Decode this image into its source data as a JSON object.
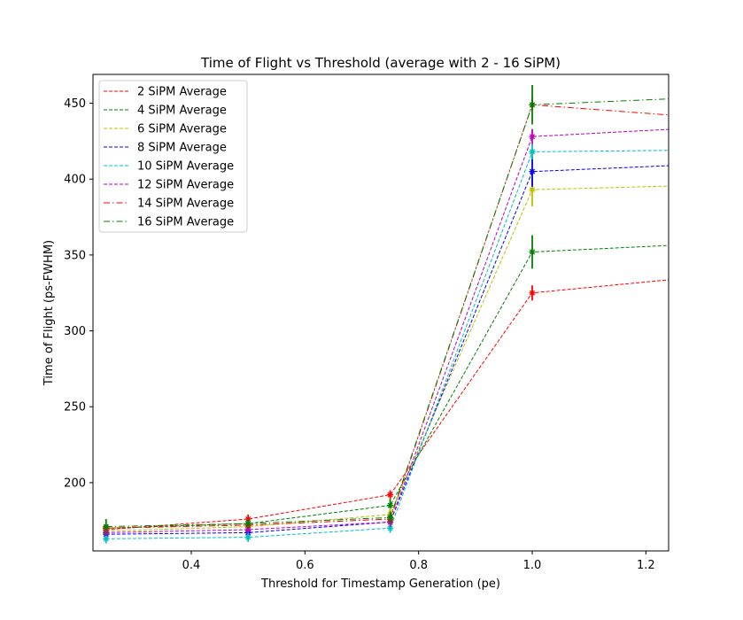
{
  "chart_data": {
    "type": "line",
    "title": "Time of Flight vs Threshold (average with 2 - 16 SiPM)",
    "xlabel": "Threshold for Timestamp Generation (pe)",
    "ylabel": "Time of Flight (ps-FWHM)",
    "xlim": [
      0.227,
      1.24
    ],
    "ylim": [
      155,
      469
    ],
    "xticks": [
      0.4,
      0.6,
      0.8,
      1.0,
      1.2
    ],
    "xtick_labels": [
      "0.4",
      "0.6",
      "0.8",
      "1.0",
      "1.2"
    ],
    "yticks": [
      200,
      250,
      300,
      350,
      400,
      450
    ],
    "ytick_labels": [
      "200",
      "250",
      "300",
      "350",
      "400",
      "450"
    ],
    "grid": false,
    "legend_position": "top-left",
    "x": [
      0.25,
      0.5,
      0.75,
      1.0,
      1.25
    ],
    "series": [
      {
        "name": "2 SiPM Average",
        "color": "#ff0000",
        "dash": "dashed",
        "values": [
          169,
          176,
          192,
          325,
          334
        ],
        "errors": [
          3,
          3,
          3,
          5,
          0
        ]
      },
      {
        "name": "4 SiPM Average",
        "color": "#008000",
        "dash": "dashed",
        "values": [
          170,
          173,
          185,
          352,
          356.5
        ],
        "errors": [
          3,
          3,
          4,
          11,
          0
        ]
      },
      {
        "name": "6 SiPM Average",
        "color": "#bfbf00",
        "dash": "dashed",
        "values": [
          168,
          171,
          179,
          393,
          395.5
        ],
        "errors": [
          3,
          3,
          4,
          11,
          0
        ]
      },
      {
        "name": "8 SiPM Average",
        "color": "#0000ff",
        "dash": "dashed",
        "values": [
          166,
          167,
          174,
          405,
          409
        ],
        "errors": [
          2,
          2,
          3,
          10,
          0
        ]
      },
      {
        "name": "10 SiPM Average",
        "color": "#00bfbf",
        "dash": "dashed",
        "values": [
          163,
          164,
          170,
          418,
          419
        ],
        "errors": [
          3,
          3,
          3,
          5,
          0
        ]
      },
      {
        "name": "12 SiPM Average",
        "color": "#bf00bf",
        "dash": "dashed",
        "values": [
          167,
          169,
          174,
          428,
          433
        ],
        "errors": [
          2,
          2,
          3,
          5,
          0
        ]
      },
      {
        "name": "14 SiPM Average",
        "color": "#ff0000",
        "dash": "dashdot",
        "values": [
          170,
          172,
          176,
          449,
          442
        ],
        "errors": [
          2,
          2,
          3,
          4,
          0
        ]
      },
      {
        "name": "16 SiPM Average",
        "color": "#008000",
        "dash": "dashdot",
        "values": [
          171,
          173,
          177,
          449,
          453
        ],
        "errors": [
          5,
          3,
          4,
          13,
          0
        ]
      }
    ]
  }
}
